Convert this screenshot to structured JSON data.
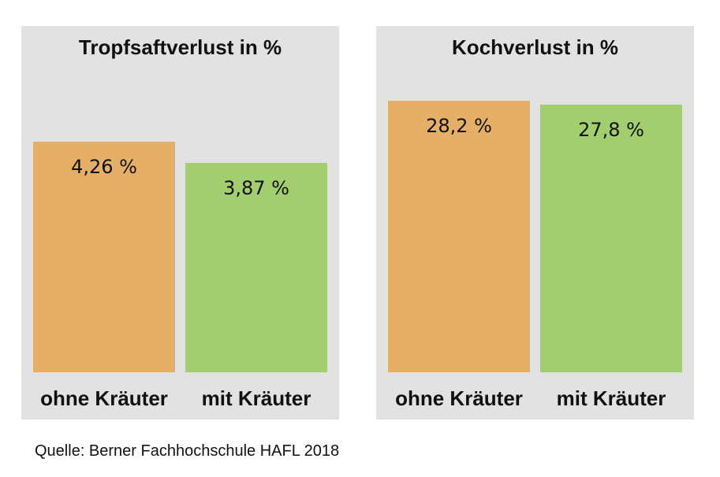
{
  "chart_data": [
    {
      "type": "bar",
      "title": "Tropfsaftverlust in %",
      "categories": [
        "ohne Kräuter",
        "mit Kräuter"
      ],
      "values": [
        4.26,
        3.87
      ],
      "value_labels": [
        "4,26 %",
        "3,87 %"
      ],
      "colors": [
        "#e6af68",
        "#a3ce6f"
      ],
      "ylim": [
        0,
        6.4
      ],
      "grid": false,
      "legend": "none"
    },
    {
      "type": "bar",
      "title": "Kochverlust in %",
      "categories": [
        "ohne Kräuter",
        "mit Kräuter"
      ],
      "values": [
        28.2,
        27.8
      ],
      "value_labels": [
        "28,2 %",
        "27,8 %"
      ],
      "colors": [
        "#e6af68",
        "#a3ce6f"
      ],
      "ylim": [
        0,
        36
      ],
      "grid": false,
      "legend": "none"
    }
  ],
  "source": "Quelle: Berner Fachhochschule HAFL 2018"
}
